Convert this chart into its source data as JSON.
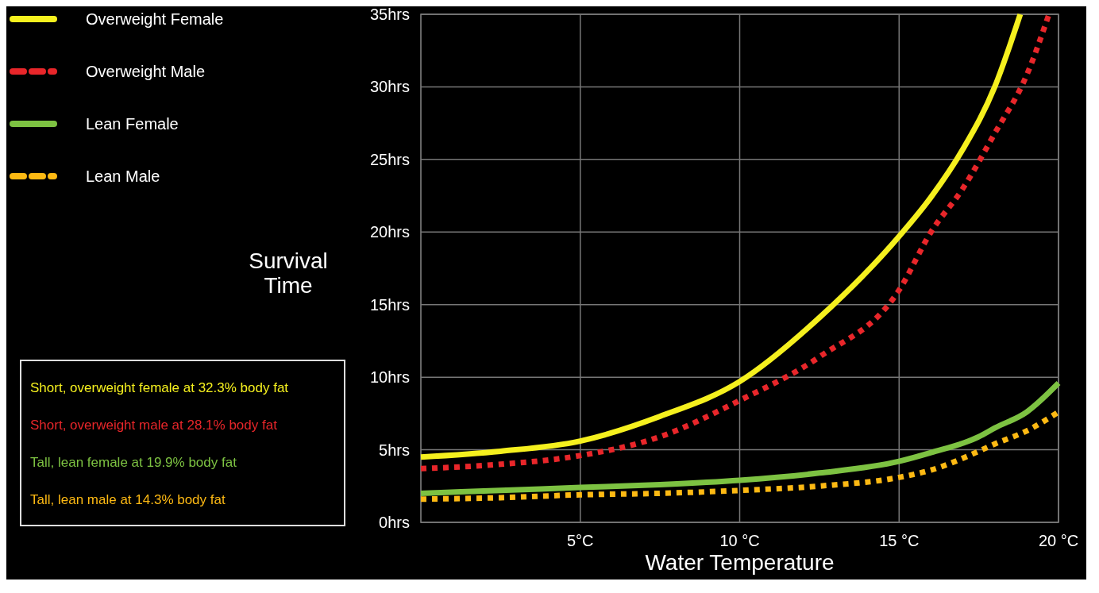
{
  "chart_data": {
    "type": "line",
    "xlabel": "Water Temperature",
    "ylabel": "Survival Time",
    "xlim": [
      0,
      20
    ],
    "ylim": [
      0,
      35
    ],
    "xticks": [
      {
        "value": 5,
        "label": "5°C"
      },
      {
        "value": 10,
        "label": "10 °C"
      },
      {
        "value": 15,
        "label": "15 °C"
      },
      {
        "value": 20,
        "label": "20 °C"
      }
    ],
    "yticks": [
      {
        "value": 0,
        "label": "0hrs"
      },
      {
        "value": 5,
        "label": "5hrs"
      },
      {
        "value": 10,
        "label": "10hrs"
      },
      {
        "value": 15,
        "label": "15hrs"
      },
      {
        "value": 20,
        "label": "20hrs"
      },
      {
        "value": 25,
        "label": "25hrs"
      },
      {
        "value": 30,
        "label": "30hrs"
      },
      {
        "value": 35,
        "label": "35hrs"
      }
    ],
    "grid": true,
    "legend": "top left",
    "marker": "none",
    "series": [
      {
        "name": "Overweight Female",
        "color": "#f5f01e",
        "line_style": "solid",
        "x": [
          0,
          2.5,
          5,
          7.5,
          10,
          12.5,
          15,
          16,
          17,
          18,
          18.8
        ],
        "values": [
          4.5,
          4.9,
          5.6,
          7.3,
          9.7,
          14.1,
          19.7,
          22.4,
          25.7,
          30,
          35
        ]
      },
      {
        "name": "Overweight Male",
        "color": "#e8262a",
        "line_style": "dotted",
        "x": [
          0,
          2.5,
          5,
          7.5,
          10,
          12.5,
          15,
          16,
          17,
          18,
          19,
          19.7
        ],
        "values": [
          3.7,
          4,
          4.6,
          5.9,
          8.4,
          11.4,
          16,
          20,
          23,
          26.8,
          30.8,
          35
        ]
      },
      {
        "name": "Lean Female",
        "color": "#7dc242",
        "line_style": "solid",
        "x": [
          0,
          2.5,
          5,
          7.5,
          10,
          12.5,
          15,
          16,
          17.5,
          18,
          19,
          20
        ],
        "values": [
          2,
          2.2,
          2.4,
          2.6,
          2.9,
          3.4,
          4.2,
          4.8,
          5.9,
          6.5,
          7.6,
          9.6
        ]
      },
      {
        "name": "Lean Male",
        "color": "#fdb913",
        "line_style": "dotted",
        "x": [
          0,
          2.5,
          5,
          7.5,
          10,
          12.5,
          15,
          16,
          17.5,
          18,
          19,
          20
        ],
        "values": [
          1.6,
          1.7,
          1.9,
          2,
          2.2,
          2.5,
          3.1,
          3.6,
          4.9,
          5.4,
          6.3,
          7.6
        ]
      }
    ],
    "annotations": [
      "Short, overweight female at 32.3% body fat",
      "Short, overweight male at 28.1% body fat",
      "Tall, lean female at 19.9% body fat",
      "Tall, lean male at 14.3% body fat"
    ]
  }
}
